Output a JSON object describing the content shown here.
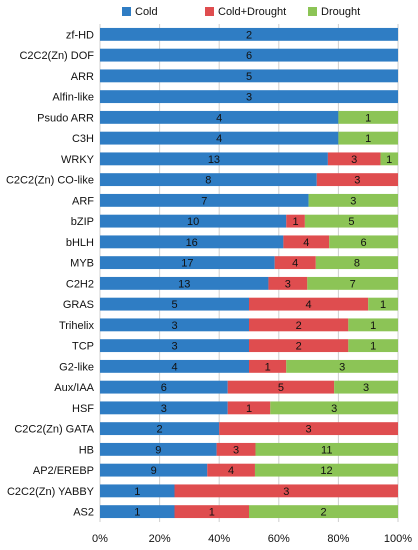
{
  "chart_data": {
    "type": "bar",
    "orientation": "horizontal",
    "stacked": "percent",
    "categories": [
      "zf-HD",
      "C2C2(Zn) DOF",
      "ARR",
      "Alfin-like",
      "Psudo ARR",
      "C3H",
      "WRKY",
      "C2C2(Zn) CO-like",
      "ARF",
      "bZIP",
      "bHLH",
      "MYB",
      "C2H2",
      "GRAS",
      "Trihelix",
      "TCP",
      "G2-like",
      "Aux/IAA",
      "HSF",
      "C2C2(Zn) GATA",
      "HB",
      "AP2/EREBP",
      "C2C2(Zn) YABBY",
      "AS2"
    ],
    "series": [
      {
        "name": "Cold",
        "color": "#2f7dc4",
        "values": [
          2,
          6,
          5,
          3,
          4,
          4,
          13,
          8,
          7,
          10,
          16,
          17,
          13,
          5,
          3,
          3,
          4,
          6,
          3,
          2,
          9,
          9,
          1,
          1
        ]
      },
      {
        "name": "Cold+Drought",
        "color": "#df4d4f",
        "values": [
          0,
          0,
          0,
          0,
          0,
          0,
          3,
          3,
          0,
          1,
          4,
          4,
          3,
          4,
          2,
          2,
          1,
          5,
          1,
          3,
          3,
          4,
          3,
          1
        ]
      },
      {
        "name": "Drought",
        "color": "#8cc456",
        "values": [
          0,
          0,
          0,
          0,
          1,
          1,
          1,
          0,
          3,
          5,
          6,
          8,
          7,
          1,
          1,
          1,
          3,
          3,
          3,
          0,
          11,
          12,
          0,
          2
        ]
      }
    ],
    "xticks": [
      "0%",
      "20%",
      "40%",
      "60%",
      "80%",
      "100%"
    ],
    "xlim": [
      0,
      100
    ],
    "legend_position": "top",
    "grid": "vertical"
  }
}
